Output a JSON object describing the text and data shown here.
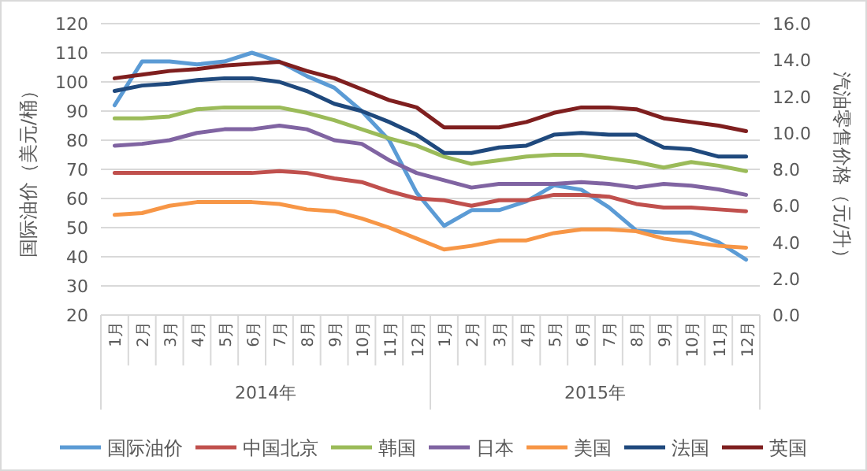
{
  "chart_data": {
    "type": "line",
    "ylabel": "国际油价（美元/桶）",
    "y2label": "汽油零售价格（元/升）",
    "categories": [
      "1月",
      "2月",
      "3月",
      "4月",
      "5月",
      "6月",
      "7月",
      "8月",
      "9月",
      "10月",
      "11月",
      "12月",
      "1月",
      "2月",
      "3月",
      "4月",
      "5月",
      "6月",
      "7月",
      "8月",
      "9月",
      "10月",
      "11月",
      "12月"
    ],
    "annotations": [
      "2014年",
      "2015年"
    ],
    "ylim": [
      20,
      120
    ],
    "yticks": [
      20,
      30,
      40,
      50,
      60,
      70,
      80,
      90,
      100,
      110,
      120
    ],
    "y2lim": [
      0,
      16
    ],
    "y2ticks": [
      {
        "value": 0,
        "label": "0.0"
      },
      {
        "value": 2,
        "label": "2.0"
      },
      {
        "value": 4,
        "label": "4.0"
      },
      {
        "value": 6,
        "label": "6.0"
      },
      {
        "value": 8,
        "label": "8.0"
      },
      {
        "value": 10,
        "label": "10.0"
      },
      {
        "value": 12,
        "label": "12.0"
      },
      {
        "value": 14,
        "label": "14.0"
      },
      {
        "value": 16,
        "label": "16.0"
      }
    ],
    "grid": "y",
    "legend": "bottom",
    "marker": "none",
    "line_style": "solid",
    "series": [
      {
        "name": "国际油价",
        "color": "#5b9bd5",
        "values": [
          92,
          107,
          107,
          106,
          107,
          110,
          107,
          102,
          98,
          90,
          80,
          62,
          50.6,
          56,
          56,
          59,
          64.5,
          63,
          57,
          49,
          48.3,
          48.3,
          45,
          39
        ]
      },
      {
        "name": "中国北京",
        "color": "#c0504d",
        "axis": "y2",
        "values": [
          7.8,
          7.8,
          7.8,
          7.8,
          7.8,
          7.8,
          7.9,
          7.8,
          7.5,
          7.3,
          6.8,
          6.4,
          6.3,
          6.0,
          6.3,
          6.3,
          6.6,
          6.6,
          6.5,
          6.1,
          5.9,
          5.9,
          5.8,
          5.7
        ]
      },
      {
        "name": "韩国",
        "color": "#9bbb59",
        "axis": "y2",
        "values": [
          10.8,
          10.8,
          10.9,
          11.3,
          11.4,
          11.4,
          11.4,
          11.1,
          10.7,
          10.2,
          9.7,
          9.3,
          8.7,
          8.3,
          8.5,
          8.7,
          8.8,
          8.8,
          8.6,
          8.4,
          8.1,
          8.4,
          8.2,
          7.9
        ]
      },
      {
        "name": "日本",
        "color": "#8064a2",
        "axis": "y2",
        "values": [
          9.3,
          9.4,
          9.6,
          10.0,
          10.2,
          10.2,
          10.4,
          10.2,
          9.6,
          9.4,
          8.5,
          7.8,
          7.4,
          7.0,
          7.2,
          7.2,
          7.2,
          7.3,
          7.2,
          7.0,
          7.2,
          7.1,
          6.9,
          6.6
        ]
      },
      {
        "name": "美国",
        "color": "#f79646",
        "axis": "y2",
        "values": [
          5.5,
          5.6,
          6.0,
          6.2,
          6.2,
          6.2,
          6.1,
          5.8,
          5.7,
          5.3,
          4.8,
          4.2,
          3.6,
          3.8,
          4.1,
          4.1,
          4.5,
          4.7,
          4.7,
          4.6,
          4.2,
          4.0,
          3.8,
          3.7
        ]
      },
      {
        "name": "法国",
        "color": "#1f497d",
        "axis": "y2",
        "values": [
          12.3,
          12.6,
          12.7,
          12.9,
          13.0,
          13.0,
          12.8,
          12.3,
          11.6,
          11.2,
          10.6,
          9.9,
          8.9,
          8.9,
          9.2,
          9.3,
          9.9,
          10.0,
          9.9,
          9.9,
          9.2,
          9.1,
          8.7,
          8.7
        ]
      },
      {
        "name": "英国",
        "color": "#7f1f1f",
        "axis": "y2",
        "values": [
          13.0,
          13.2,
          13.4,
          13.5,
          13.7,
          13.8,
          13.9,
          13.4,
          13.0,
          12.4,
          11.8,
          11.4,
          10.3,
          10.3,
          10.3,
          10.6,
          11.1,
          11.4,
          11.4,
          11.3,
          10.8,
          10.6,
          10.4,
          10.1
        ]
      }
    ]
  }
}
